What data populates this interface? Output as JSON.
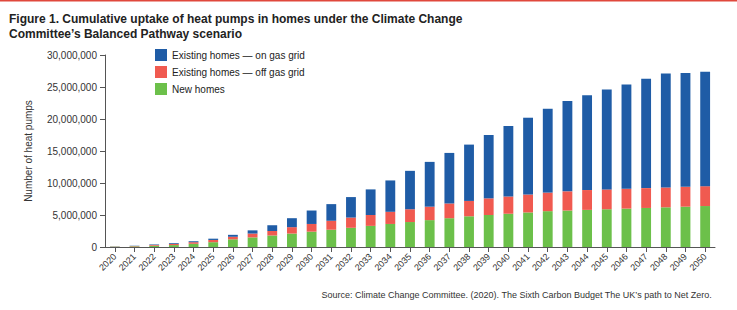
{
  "chart_data": {
    "type": "bar",
    "title": "Figure 1. Cumulative uptake of heat pumps in homes under the Climate Change Committee’s Balanced Pathway scenario",
    "y_label": "Number of heat pumps",
    "source": "Source: Climate Change Committee. (2020). The Sixth Carbon Budget The UK’s path to Net Zero.",
    "categories": [
      "2020",
      "2021",
      "2022",
      "2023",
      "2024",
      "2025",
      "2026",
      "2027",
      "2028",
      "2029",
      "2030",
      "2031",
      "2032",
      "2033",
      "2034",
      "2035",
      "2036",
      "2037",
      "2038",
      "2039",
      "2040",
      "2041",
      "2042",
      "2043",
      "2044",
      "2045",
      "2046",
      "2047",
      "2048",
      "2049",
      "2050"
    ],
    "series": [
      {
        "name": "New homes",
        "color": "#6cc04a",
        "values": [
          50000,
          100000,
          200000,
          300000,
          500000,
          750000,
          1200000,
          1500000,
          1800000,
          2100000,
          2400000,
          2700000,
          3000000,
          3300000,
          3600000,
          3900000,
          4200000,
          4500000,
          4800000,
          5000000,
          5200000,
          5400000,
          5600000,
          5700000,
          5800000,
          5900000,
          6000000,
          6100000,
          6200000,
          6300000,
          6400000
        ]
      },
      {
        "name": "Existing homes — off gas grid",
        "color": "#f05a50",
        "values": [
          30000,
          60000,
          120000,
          180000,
          250000,
          350000,
          400000,
          600000,
          700000,
          1000000,
          1200000,
          1400000,
          1600000,
          1700000,
          1900000,
          2000000,
          2100000,
          2300000,
          2400000,
          2600000,
          2700000,
          2800000,
          2900000,
          3000000,
          3100000,
          3100000,
          3100000,
          3100000,
          3100000,
          3100000,
          3100000
        ]
      },
      {
        "name": "Existing homes — on gas grid",
        "color": "#1f5ca6",
        "values": [
          20000,
          40000,
          80000,
          120000,
          150000,
          200000,
          300000,
          500000,
          900000,
          1400000,
          2100000,
          2600000,
          3200000,
          4000000,
          4900000,
          6000000,
          7000000,
          7900000,
          8800000,
          9900000,
          11000000,
          12000000,
          13100000,
          14100000,
          14800000,
          15600000,
          16300000,
          17100000,
          17800000,
          17800000,
          17900000
        ]
      }
    ],
    "stacked": true,
    "ylim": [
      0,
      30000000
    ],
    "yticks": [
      0,
      {
        "value": 5000000,
        "label": "5,000,000"
      },
      {
        "value": 10000000,
        "label": "10,000,000"
      },
      {
        "value": 15000000,
        "label": "15,000,000"
      },
      {
        "value": 20000000,
        "label": "20,000,000"
      },
      {
        "value": 25000000,
        "label": "25,000,000"
      },
      {
        "value": 30000000,
        "label": "30,000,000"
      }
    ],
    "grid": false,
    "legend": "upper left"
  }
}
